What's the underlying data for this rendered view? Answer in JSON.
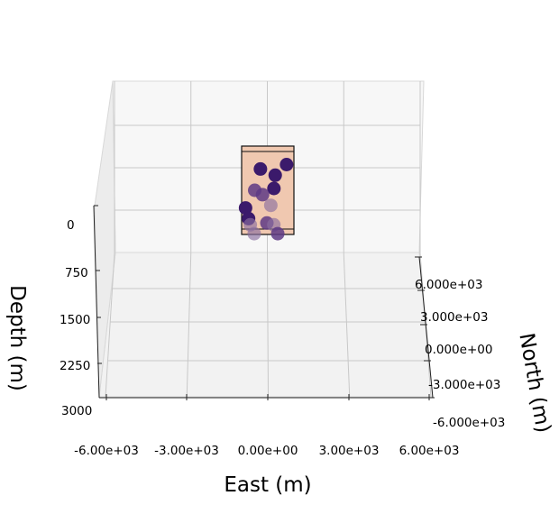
{
  "chart_data": {
    "type": "scatter3d",
    "xlabel": "East (m)",
    "ylabel": "North (m)",
    "zlabel": "Depth (m)",
    "xlim": [
      -6000,
      6000
    ],
    "ylim": [
      -6000,
      6000
    ],
    "zlim": [
      0,
      3000
    ],
    "x_ticks": [
      "-6.00e+03",
      "-3.00e+03",
      "0.00e+00",
      "3.00e+03",
      "6.00e+03"
    ],
    "y_ticks": [
      "-6.000e+03",
      "-3.000e+03",
      "0.000e+00",
      "3.000e+03",
      "6.000e+03"
    ],
    "z_ticks": [
      "0",
      "750",
      "1500",
      "2250",
      "3000"
    ],
    "grid": true,
    "colors": {
      "point_dark": "#3b1a6b",
      "point_mid": "#5e3a85",
      "point_light": "#8a6fa0",
      "box_fill": "#f0c8b0",
      "pane_back": "#f7f7f7",
      "pane_floor": "#f2f2f2",
      "grid": "#c8c8c8"
    },
    "block": {
      "east": [
        -1000,
        1000
      ],
      "north": [
        -1000,
        1000
      ],
      "depth": [
        0,
        1000
      ]
    },
    "points": [
      {
        "east": -350,
        "north": 1000,
        "depth": 300,
        "shade": "dark"
      },
      {
        "east": 650,
        "north": 1000,
        "depth": 250,
        "shade": "dark"
      },
      {
        "east": 250,
        "north": 500,
        "depth": 350,
        "shade": "dark"
      },
      {
        "east": 200,
        "north": 500,
        "depth": 500,
        "shade": "dark"
      },
      {
        "east": -500,
        "north": 0,
        "depth": 500,
        "shade": "mid"
      },
      {
        "east": -200,
        "north": 0,
        "depth": 550,
        "shade": "mid"
      },
      {
        "east": -850,
        "north": 0,
        "depth": 700,
        "shade": "dark"
      },
      {
        "east": -700,
        "north": -500,
        "depth": 800,
        "shade": "dark"
      },
      {
        "east": 150,
        "north": -500,
        "depth": 650,
        "shade": "light"
      },
      {
        "east": 0,
        "north": -500,
        "depth": 850,
        "shade": "mid"
      },
      {
        "east": 300,
        "north": -1000,
        "depth": 850,
        "shade": "light"
      },
      {
        "east": -600,
        "north": -1000,
        "depth": 850,
        "shade": "light"
      },
      {
        "east": -450,
        "north": -1000,
        "depth": 950,
        "shade": "light"
      },
      {
        "east": 450,
        "north": -1000,
        "depth": 950,
        "shade": "mid"
      }
    ]
  }
}
